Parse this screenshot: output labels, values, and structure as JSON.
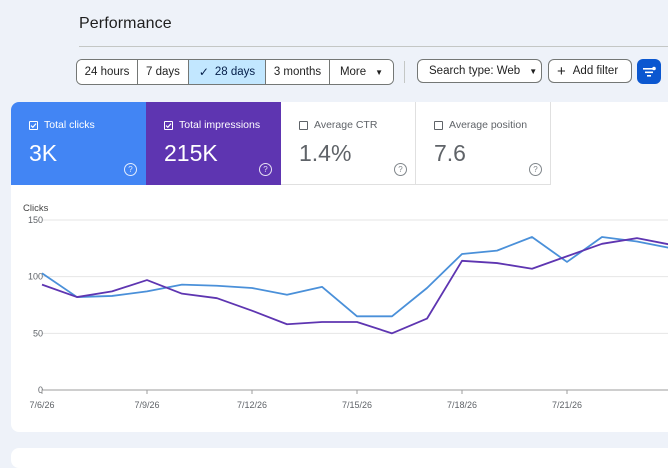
{
  "header": {
    "title": "Performance"
  },
  "date_range": {
    "options": [
      "24 hours",
      "7 days",
      "28 days",
      "3 months"
    ],
    "selected": "28 days",
    "more_label": "More"
  },
  "filters": {
    "search_type_label": "Search type: Web",
    "add_filter_label": "Add filter"
  },
  "metrics": [
    {
      "label": "Total clicks",
      "value": "3K",
      "checked": true,
      "color": "#4285f4"
    },
    {
      "label": "Total impressions",
      "value": "215K",
      "checked": true,
      "color": "#5e35b1"
    },
    {
      "label": "Average CTR",
      "value": "1.4%",
      "checked": false
    },
    {
      "label": "Average position",
      "value": "7.6",
      "checked": false
    }
  ],
  "chart_data": {
    "type": "line",
    "ylabel": "Clicks",
    "ylim": [
      0,
      150
    ],
    "yticks": [
      0,
      50,
      100,
      150
    ],
    "x_tick_labels": [
      "7/6/26",
      "7/9/26",
      "7/12/26",
      "7/15/26",
      "7/18/26",
      "7/21/26"
    ],
    "x_tick_index": [
      0,
      3,
      6,
      9,
      12,
      15
    ],
    "x": [
      "7/6/26",
      "7/7/26",
      "7/8/26",
      "7/9/26",
      "7/10/26",
      "7/11/26",
      "7/12/26",
      "7/13/26",
      "7/14/26",
      "7/15/26",
      "7/16/26",
      "7/17/26",
      "7/18/26",
      "7/19/26",
      "7/20/26",
      "7/21/26",
      "7/22/26",
      "7/23/26",
      "7/24/26"
    ],
    "series": [
      {
        "name": "Total clicks",
        "color": "#4a90d9",
        "values": [
          103,
          82,
          83,
          87,
          93,
          92,
          90,
          84,
          91,
          65,
          65,
          90,
          120,
          123,
          135,
          113,
          135,
          131,
          125
        ]
      },
      {
        "name": "Total impressions",
        "color": "#5e35b1",
        "values": [
          93,
          82,
          87,
          97,
          85,
          81,
          70,
          58,
          60,
          60,
          50,
          63,
          114,
          112,
          107,
          118,
          129,
          134,
          128
        ]
      }
    ],
    "grid": true
  }
}
